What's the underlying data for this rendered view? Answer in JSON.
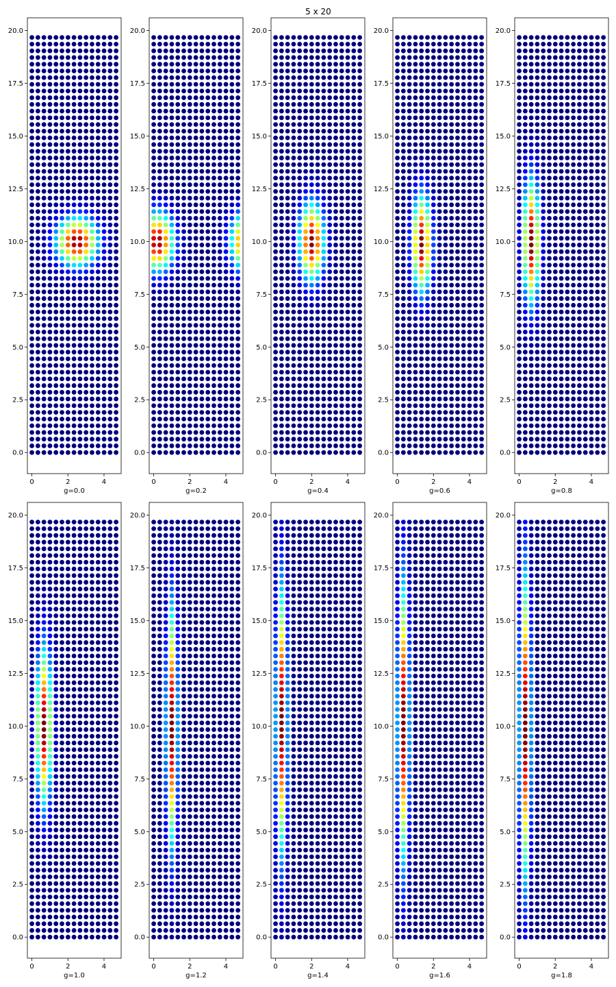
{
  "figure": {
    "title": "5 x 20"
  },
  "colormap": {
    "name": "jet",
    "stops": [
      "#00007f",
      "#0000ff",
      "#00ffff",
      "#ffff00",
      "#ff0000",
      "#7f0000"
    ]
  },
  "chart_data": [
    {
      "type": "scatter",
      "xlabel": "g=0.0",
      "xlim": [
        -0.25,
        4.95
      ],
      "ylim": [
        -1.0,
        20.6
      ],
      "xticks": [
        "0",
        "2",
        "4"
      ],
      "yticks": [
        "0.0",
        "2.5",
        "5.0",
        "7.5",
        "10.0",
        "12.5",
        "15.0",
        "17.5",
        "20.0"
      ],
      "grid": false,
      "lattice": {
        "nx": 15,
        "ny": 63,
        "x_range": [
          0,
          4.67
        ],
        "y_range": [
          0,
          19.67
        ]
      },
      "intensity": {
        "shape": "blob",
        "cx": 2.5,
        "cy": 10.0,
        "sx": 0.75,
        "sy": 0.75
      }
    },
    {
      "type": "scatter",
      "xlabel": "g=0.2",
      "xlim": [
        -0.25,
        4.95
      ],
      "ylim": [
        -1.0,
        20.6
      ],
      "xticks": [
        "0",
        "2",
        "4"
      ],
      "yticks": [
        "0.0",
        "2.5",
        "5.0",
        "7.5",
        "10.0",
        "12.5",
        "15.0",
        "17.5",
        "20.0"
      ],
      "grid": false,
      "lattice": {
        "nx": 15,
        "ny": 63,
        "x_range": [
          0,
          4.67
        ],
        "y_range": [
          0,
          19.67
        ]
      },
      "intensity": {
        "shape": "blob-periodic",
        "cx": 0.2,
        "cy": 10.0,
        "sx": 0.6,
        "sy": 0.9
      }
    },
    {
      "type": "scatter",
      "xlabel": "g=0.4",
      "xlim": [
        -0.25,
        4.95
      ],
      "ylim": [
        -1.0,
        20.6
      ],
      "xticks": [
        "0",
        "2",
        "4"
      ],
      "yticks": [
        "0.0",
        "2.5",
        "5.0",
        "7.5",
        "10.0",
        "12.5",
        "15.0",
        "17.5",
        "20.0"
      ],
      "grid": false,
      "lattice": {
        "nx": 15,
        "ny": 63,
        "x_range": [
          0,
          4.67
        ],
        "y_range": [
          0,
          19.67
        ]
      },
      "intensity": {
        "shape": "blob",
        "cx": 2.0,
        "cy": 10.0,
        "sx": 0.45,
        "sy": 1.2
      }
    },
    {
      "type": "scatter",
      "xlabel": "g=0.6",
      "xlim": [
        -0.25,
        4.95
      ],
      "ylim": [
        -1.0,
        20.6
      ],
      "xticks": [
        "0",
        "2",
        "4"
      ],
      "yticks": [
        "0.0",
        "2.5",
        "5.0",
        "7.5",
        "10.0",
        "12.5",
        "15.0",
        "17.5",
        "20.0"
      ],
      "grid": false,
      "lattice": {
        "nx": 15,
        "ny": 63,
        "x_range": [
          0,
          4.67
        ],
        "y_range": [
          0,
          19.67
        ]
      },
      "intensity": {
        "shape": "blob",
        "cx": 1.35,
        "cy": 9.9,
        "sx": 0.35,
        "sy": 1.5
      }
    },
    {
      "type": "scatter",
      "xlabel": "g=0.8",
      "xlim": [
        -0.25,
        4.95
      ],
      "ylim": [
        -1.0,
        20.6
      ],
      "xticks": [
        "0",
        "2",
        "4"
      ],
      "yticks": [
        "0.0",
        "2.5",
        "5.0",
        "7.5",
        "10.0",
        "12.5",
        "15.0",
        "17.5",
        "20.0"
      ],
      "grid": false,
      "lattice": {
        "nx": 15,
        "ny": 63,
        "x_range": [
          0,
          4.67
        ],
        "y_range": [
          0,
          19.67
        ]
      },
      "intensity": {
        "shape": "blob",
        "cx": 0.67,
        "cy": 10.0,
        "sx": 0.3,
        "sy": 1.9
      }
    },
    {
      "type": "scatter",
      "xlabel": "g=1.0",
      "xlim": [
        -0.25,
        4.95
      ],
      "ylim": [
        -1.0,
        20.6
      ],
      "xticks": [
        "0",
        "2",
        "4"
      ],
      "yticks": [
        "0.0",
        "2.5",
        "5.0",
        "7.5",
        "10.0",
        "12.5",
        "15.0",
        "17.5",
        "20.0"
      ],
      "grid": false,
      "lattice": {
        "nx": 15,
        "ny": 63,
        "x_range": [
          0,
          4.67
        ],
        "y_range": [
          0,
          19.67
        ]
      },
      "intensity": {
        "shape": "blob",
        "cx": 0.67,
        "cy": 10.0,
        "sx": 0.28,
        "sy": 2.4
      }
    },
    {
      "type": "scatter",
      "xlabel": "g=1.2",
      "xlim": [
        -0.25,
        4.95
      ],
      "ylim": [
        -1.0,
        20.6
      ],
      "xticks": [
        "0",
        "2",
        "4"
      ],
      "yticks": [
        "0.0",
        "2.5",
        "5.0",
        "7.5",
        "10.0",
        "12.5",
        "15.0",
        "17.5",
        "20.0"
      ],
      "grid": false,
      "lattice": {
        "nx": 15,
        "ny": 63,
        "x_range": [
          0,
          4.67
        ],
        "y_range": [
          0,
          19.67
        ]
      },
      "intensity": {
        "shape": "blob",
        "cx": 1.0,
        "cy": 10.0,
        "sx": 0.2,
        "sy": 3.6
      }
    },
    {
      "type": "scatter",
      "xlabel": "g=1.4",
      "xlim": [
        -0.25,
        4.95
      ],
      "ylim": [
        -1.0,
        20.6
      ],
      "xticks": [
        "0",
        "2",
        "4"
      ],
      "yticks": [
        "0.0",
        "2.5",
        "5.0",
        "7.5",
        "10.0",
        "12.5",
        "15.0",
        "17.5",
        "20.0"
      ],
      "grid": false,
      "lattice": {
        "nx": 15,
        "ny": 63,
        "x_range": [
          0,
          4.67
        ],
        "y_range": [
          0,
          19.67
        ]
      },
      "intensity": {
        "shape": "blob",
        "cx": 0.33,
        "cy": 10.3,
        "sx": 0.2,
        "sy": 4.0
      }
    },
    {
      "type": "scatter",
      "xlabel": "g=1.6",
      "xlim": [
        -0.25,
        4.95
      ],
      "ylim": [
        -1.0,
        20.6
      ],
      "xticks": [
        "0",
        "2",
        "4"
      ],
      "yticks": [
        "0.0",
        "2.5",
        "5.0",
        "7.5",
        "10.0",
        "12.5",
        "15.0",
        "17.5",
        "20.0"
      ],
      "grid": false,
      "lattice": {
        "nx": 15,
        "ny": 63,
        "x_range": [
          0,
          4.67
        ],
        "y_range": [
          0,
          19.67
        ]
      },
      "intensity": {
        "shape": "blob",
        "cx": 0.33,
        "cy": 10.2,
        "sx": 0.2,
        "sy": 4.2
      }
    },
    {
      "type": "scatter",
      "xlabel": "g=1.8",
      "xlim": [
        -0.25,
        4.95
      ],
      "ylim": [
        -1.0,
        20.6
      ],
      "xticks": [
        "0",
        "2",
        "4"
      ],
      "yticks": [
        "0.0",
        "2.5",
        "5.0",
        "7.5",
        "10.0",
        "12.5",
        "15.0",
        "17.5",
        "20.0"
      ],
      "grid": false,
      "lattice": {
        "nx": 15,
        "ny": 63,
        "x_range": [
          0,
          4.67
        ],
        "y_range": [
          0,
          19.67
        ]
      },
      "intensity": {
        "shape": "blob",
        "cx": 0.33,
        "cy": 10.0,
        "sx": 0.2,
        "sy": 4.6
      }
    }
  ]
}
